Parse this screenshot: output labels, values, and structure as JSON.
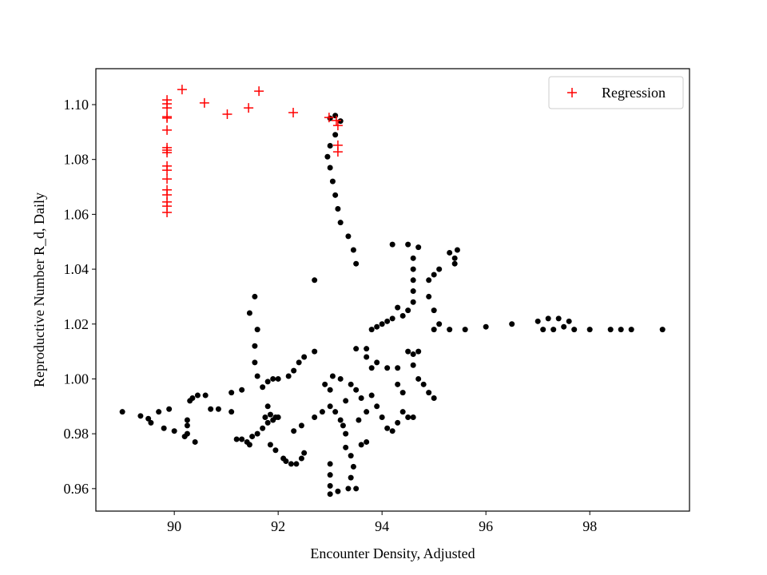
{
  "chart_data": {
    "type": "scatter",
    "xlabel": "Encounter Density, Adjusted",
    "ylabel": "Reproductive Number R_d, Daily",
    "xlim": [
      88.49,
      99.92
    ],
    "ylim": [
      0.9518,
      1.1131
    ],
    "xticks": [
      90,
      92,
      94,
      96,
      98
    ],
    "yticks": [
      0.96,
      0.98,
      {
        "value": 1.0,
        "label": "1.00"
      },
      1.02,
      1.04,
      1.06,
      1.08,
      {
        "value": 1.1,
        "label": "1.10"
      }
    ],
    "legend": "upper right",
    "series": [
      {
        "color": "#000000",
        "marker": "circle",
        "x": [
          89.0,
          89.35,
          89.5,
          89.55,
          89.7,
          89.8,
          89.9,
          90.0,
          90.2,
          90.25,
          90.25,
          90.25,
          90.3,
          90.35,
          90.4,
          90.45,
          90.6,
          90.7,
          90.85,
          91.1,
          91.1,
          91.3,
          91.2,
          91.3,
          91.4,
          91.45,
          91.5,
          91.6,
          91.7,
          91.75,
          91.8,
          91.85,
          91.9,
          91.95,
          91.8,
          92.0,
          91.85,
          91.95,
          92.1,
          92.15,
          92.25,
          92.35,
          92.45,
          92.5,
          92.3,
          92.45,
          92.7,
          92.85,
          93.0,
          91.45,
          91.55,
          91.6,
          91.55,
          91.55,
          91.6,
          91.7,
          91.8,
          91.9,
          92.0,
          92.2,
          92.3,
          92.4,
          92.5,
          92.7,
          92.7,
          92.9,
          93.0,
          93.0,
          93.1,
          93.2,
          93.1,
          93.0,
          92.95,
          93.0,
          93.05,
          93.1,
          93.15,
          93.2,
          93.35,
          93.45,
          93.5,
          93.05,
          93.2,
          93.4,
          93.5,
          93.6,
          93.3,
          93.1,
          93.2,
          93.25,
          93.3,
          93.3,
          93.4,
          93.45,
          93.4,
          93.35,
          93.5,
          93.6,
          93.7,
          93.55,
          93.7,
          93.0,
          93.0,
          93.0,
          93.15,
          93.0,
          93.8,
          93.9,
          94.0,
          94.1,
          94.2,
          94.3,
          94.4,
          94.5,
          94.6,
          94.4,
          94.3,
          94.3,
          94.1,
          93.9,
          93.8,
          93.7,
          93.5,
          93.7,
          93.8,
          93.9,
          94.0,
          94.1,
          94.2,
          94.4,
          94.3,
          94.5,
          94.6,
          94.6,
          94.6,
          94.6,
          94.6,
          94.7,
          94.5,
          94.2,
          94.5,
          94.6,
          94.7,
          94.6,
          94.7,
          94.8,
          94.9,
          95.0,
          94.9,
          95.0,
          95.1,
          94.9,
          95.0,
          95.1,
          95.0,
          95.3,
          95.3,
          95.4,
          95.4,
          95.45,
          95.6,
          96.0,
          96.5,
          97.0,
          97.1,
          97.2,
          97.3,
          97.4,
          97.5,
          97.6,
          97.7,
          98.0,
          98.4,
          98.6,
          98.8,
          99.4
        ],
        "values": [
          0.988,
          0.9865,
          0.9855,
          0.984,
          0.988,
          0.982,
          0.989,
          0.981,
          0.979,
          0.98,
          0.983,
          0.985,
          0.992,
          0.993,
          0.977,
          0.994,
          0.994,
          0.989,
          0.989,
          0.995,
          0.988,
          0.996,
          0.978,
          0.978,
          0.977,
          0.976,
          0.979,
          0.98,
          0.982,
          0.986,
          0.984,
          0.987,
          0.985,
          0.986,
          0.99,
          0.986,
          0.976,
          0.974,
          0.971,
          0.97,
          0.969,
          0.969,
          0.971,
          0.973,
          0.981,
          0.983,
          0.986,
          0.988,
          0.99,
          1.024,
          1.03,
          1.018,
          1.012,
          1.006,
          1.001,
          0.997,
          0.999,
          1.0,
          1.0,
          1.001,
          1.003,
          1.006,
          1.008,
          1.01,
          1.036,
          0.998,
          0.996,
          1.095,
          1.096,
          1.094,
          1.089,
          1.085,
          1.081,
          1.077,
          1.072,
          1.067,
          1.062,
          1.057,
          1.052,
          1.047,
          1.042,
          1.001,
          1.0,
          0.998,
          0.996,
          0.993,
          0.992,
          0.988,
          0.985,
          0.983,
          0.98,
          0.975,
          0.972,
          0.968,
          0.964,
          0.96,
          0.96,
          0.976,
          0.977,
          0.985,
          0.988,
          0.969,
          0.965,
          0.961,
          0.959,
          0.958,
          0.994,
          0.99,
          0.986,
          0.982,
          0.981,
          0.984,
          0.988,
          0.986,
          0.986,
          0.995,
          0.998,
          1.004,
          1.004,
          1.006,
          1.004,
          1.008,
          1.011,
          1.011,
          1.018,
          1.019,
          1.02,
          1.021,
          1.022,
          1.023,
          1.026,
          1.025,
          1.028,
          1.032,
          1.036,
          1.04,
          1.044,
          1.048,
          1.049,
          1.049,
          1.01,
          1.009,
          1.01,
          1.005,
          1.0,
          0.998,
          0.995,
          0.993,
          1.036,
          1.038,
          1.04,
          1.03,
          1.025,
          1.02,
          1.018,
          1.018,
          1.046,
          1.044,
          1.042,
          1.047,
          1.018,
          1.019,
          1.02,
          1.021,
          1.018,
          1.022,
          1.018,
          1.022,
          1.019,
          1.021,
          1.018,
          1.018,
          1.018,
          1.018,
          1.018,
          1.018
        ]
      },
      {
        "name": "Regression",
        "color": "#ff0000",
        "marker": "plus",
        "x": [
          89.86,
          89.86,
          89.86,
          89.86,
          89.86,
          89.86,
          89.86,
          89.86,
          89.86,
          89.86,
          89.86,
          89.86,
          89.86,
          89.86,
          89.86,
          89.86,
          89.86,
          90.15,
          90.58,
          91.02,
          91.43,
          91.63,
          92.29,
          92.98,
          93.15,
          93.15,
          93.15,
          93.12
        ],
        "values": [
          1.1017,
          1.1003,
          1.0988,
          1.0956,
          1.0951,
          1.0907,
          1.0843,
          1.0834,
          1.0825,
          1.0776,
          1.0761,
          1.0729,
          1.0689,
          1.0671,
          1.0645,
          1.063,
          1.0607,
          1.1055,
          1.1006,
          1.0965,
          1.0988,
          1.1049,
          1.0971,
          1.0953,
          1.0924,
          1.0852,
          1.0828,
          1.0942
        ]
      }
    ]
  }
}
